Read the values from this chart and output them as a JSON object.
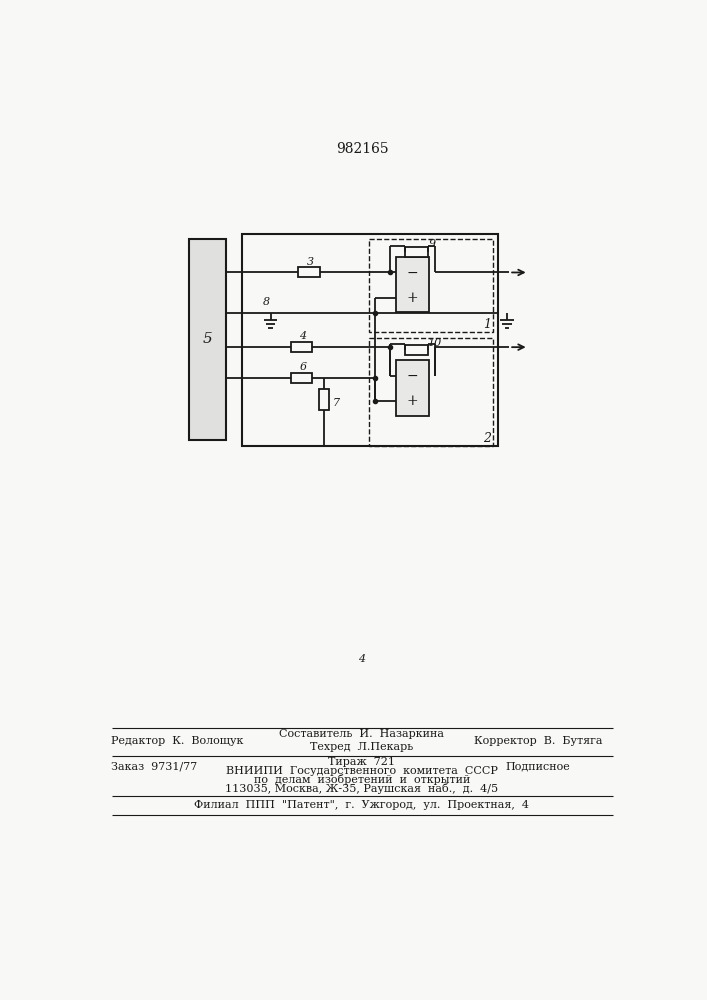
{
  "title_number": "982165",
  "bg_color": "#f8f8f6",
  "line_color": "#1a1a1a",
  "footer_left1": "Редактор  К.  Волощук",
  "footer_comp": "Составитель  И.  Назаркина",
  "footer_tech": "Техред  Л.Пекарь",
  "footer_corr": "Корректор  В.  Бутяга",
  "footer_order": "Заказ  9731/77",
  "footer_tirazh": "Тираж  721",
  "footer_podp": "Подписное",
  "footer_vniip1": "ВНИИПИ  Государственного  комитета  СССР",
  "footer_vniip2": "по  делам  изобретений  и  открытий",
  "footer_vniip3": "113035, Москва, Ж-35, Раушская  наб.,  д.  4/5",
  "footer_filial": "Филиал  ППП  \"Патент\",  г.  Ужгород,  ул.  Проектная,  4"
}
